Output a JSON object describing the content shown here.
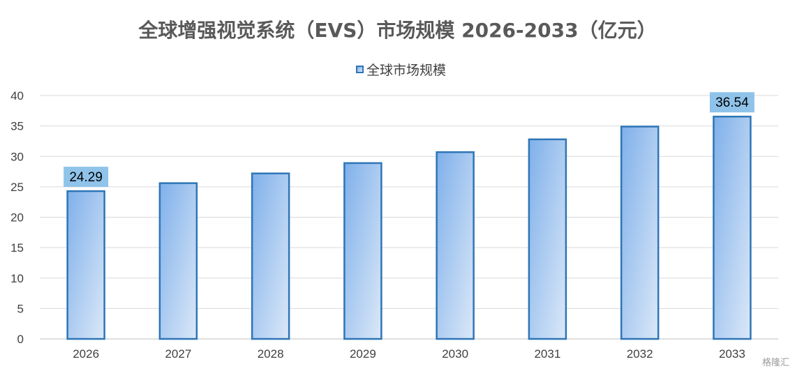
{
  "chart_data": {
    "type": "bar",
    "title": "全球增强视觉系统（EVS）市场规模 2026-2033（亿元）",
    "categories": [
      "2026",
      "2027",
      "2028",
      "2029",
      "2030",
      "2031",
      "2032",
      "2033"
    ],
    "series": [
      {
        "name": "全球市场规模",
        "values": [
          24.29,
          25.6,
          27.2,
          28.9,
          30.7,
          32.8,
          34.9,
          36.54
        ]
      }
    ],
    "data_labels": [
      {
        "category": "2026",
        "text": "24.29"
      },
      {
        "category": "2033",
        "text": "36.54"
      }
    ],
    "ylim": [
      0,
      40
    ],
    "yticks": [
      0,
      5,
      10,
      15,
      20,
      25,
      30,
      35,
      40
    ],
    "grid": true,
    "legend_position": "top",
    "colors": {
      "bar_border": "#2e75b6",
      "bar_fill_dark": "#7fb0ea",
      "bar_fill_light": "#dbe8f8",
      "label_bg": "#8fc3ea",
      "grid": "#d9d9d9",
      "text": "#404040"
    }
  },
  "watermark": "格隆汇"
}
